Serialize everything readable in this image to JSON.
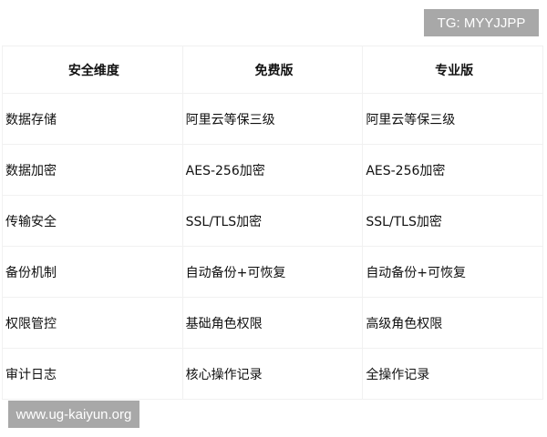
{
  "watermarks": {
    "tg": "TG: MYYJJPP",
    "site": "www.ug-kaiyun.org"
  },
  "table": {
    "headers": [
      "安全维度",
      "免费版",
      "专业版"
    ],
    "rows": [
      [
        "数据存储",
        "阿里云等保三级",
        "阿里云等保三级"
      ],
      [
        "数据加密",
        "AES-256加密",
        "AES-256加密"
      ],
      [
        "传输安全",
        "SSL/TLS加密",
        "SSL/TLS加密"
      ],
      [
        "备份机制",
        "自动备份+可恢复",
        "自动备份+可恢复"
      ],
      [
        "权限管控",
        "基础角色权限",
        "高级角色权限"
      ],
      [
        "审计日志",
        "核心操作记录",
        "全操作记录"
      ]
    ]
  }
}
